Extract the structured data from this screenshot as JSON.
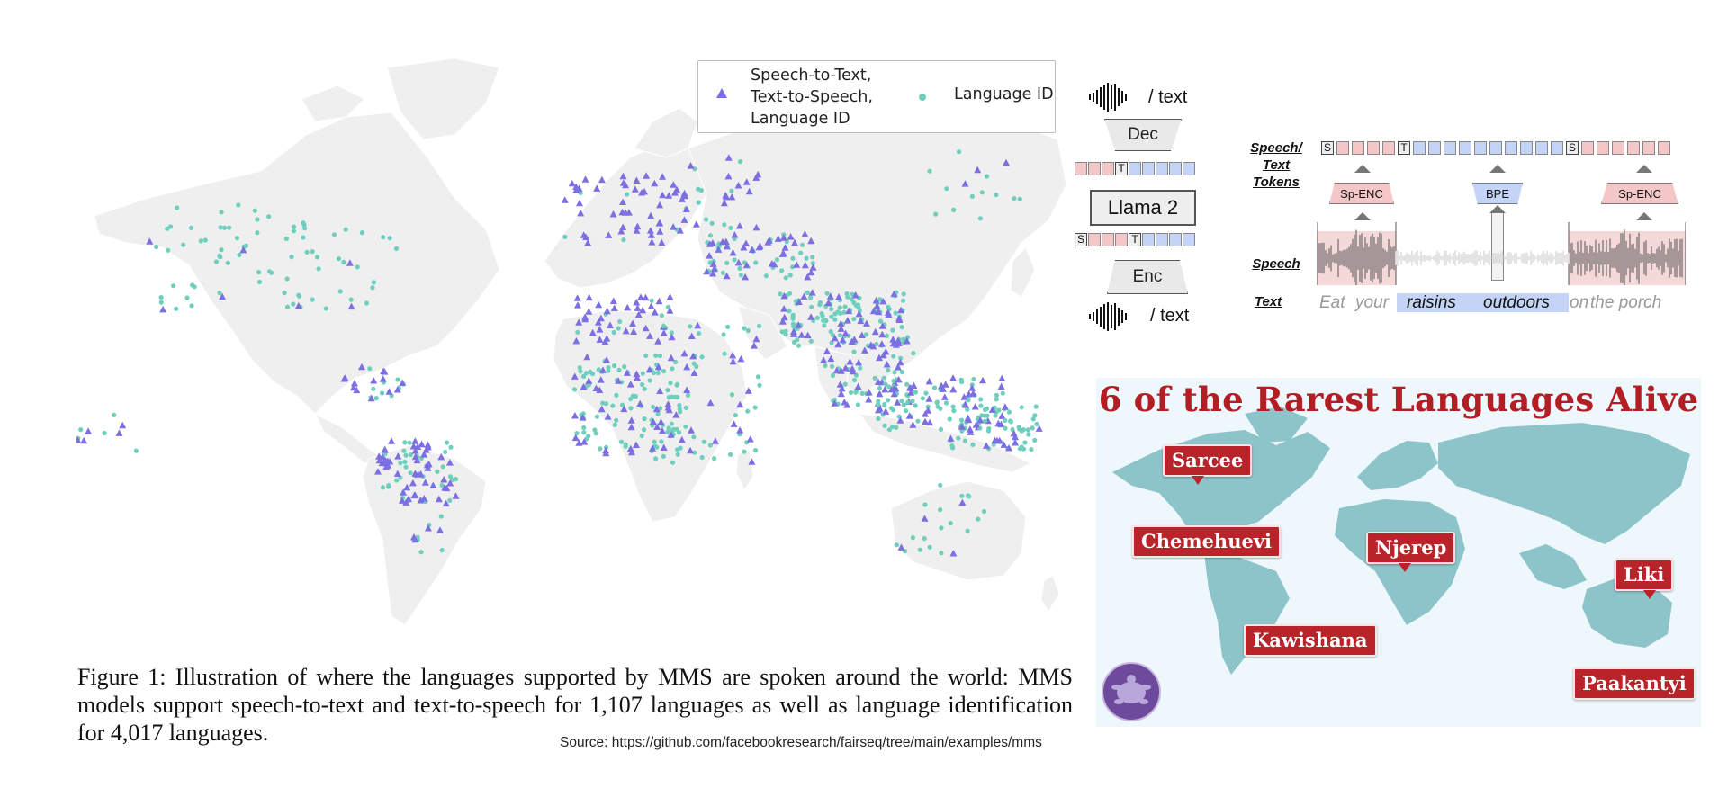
{
  "world_map": {
    "legend": {
      "stt": "Speech-to-Text,",
      "tts": "Text-to-Speech,",
      "lid_combined": "Language ID",
      "lid_only": "Language ID"
    },
    "colors": {
      "land": "#efefef",
      "border": "#ffffff",
      "triangle": "#7b6fe2",
      "dot": "#6fcfbd"
    }
  },
  "caption": {
    "text": "Figure 1: Illustration of where the languages supported by MMS are spoken around the world: MMS models support speech-to-text and text-to-speech for 1,107 languages as well as language identification for 4,017 languages."
  },
  "source": {
    "label": "Source:",
    "url": "https://github.com/facebookresearch/fairseq/tree/main/examples/mms"
  },
  "llama_diagram": {
    "top_io": "/ text",
    "decoder": "Dec",
    "model": "Llama 2",
    "encoder": "Enc",
    "bottom_io": "/ text",
    "token_T": "T",
    "token_S": "S"
  },
  "token_diagram": {
    "row_labels": {
      "tokens_1": "Speech/",
      "tokens_2": "Text",
      "tokens_3": "Tokens",
      "speech": "Speech",
      "text": "Text"
    },
    "encoders": [
      "Sp-ENC",
      "BPE",
      "Sp-ENC"
    ],
    "token_letters": {
      "s": "S",
      "t": "T"
    },
    "sentence": [
      "Eat",
      "your",
      "raisins",
      "outdoors",
      "on",
      "the porch"
    ]
  },
  "rare_languages": {
    "title": "6 of the Rarest Languages Alive",
    "colors": {
      "title": "#b21e24",
      "tag": "#b8242a",
      "land": "#8cc4c9",
      "sea": "#eef7fb"
    },
    "languages": [
      "Sarcee",
      "Chemehuevi",
      "Njerep",
      "Kawishana",
      "Liki",
      "Paakantyi"
    ]
  }
}
